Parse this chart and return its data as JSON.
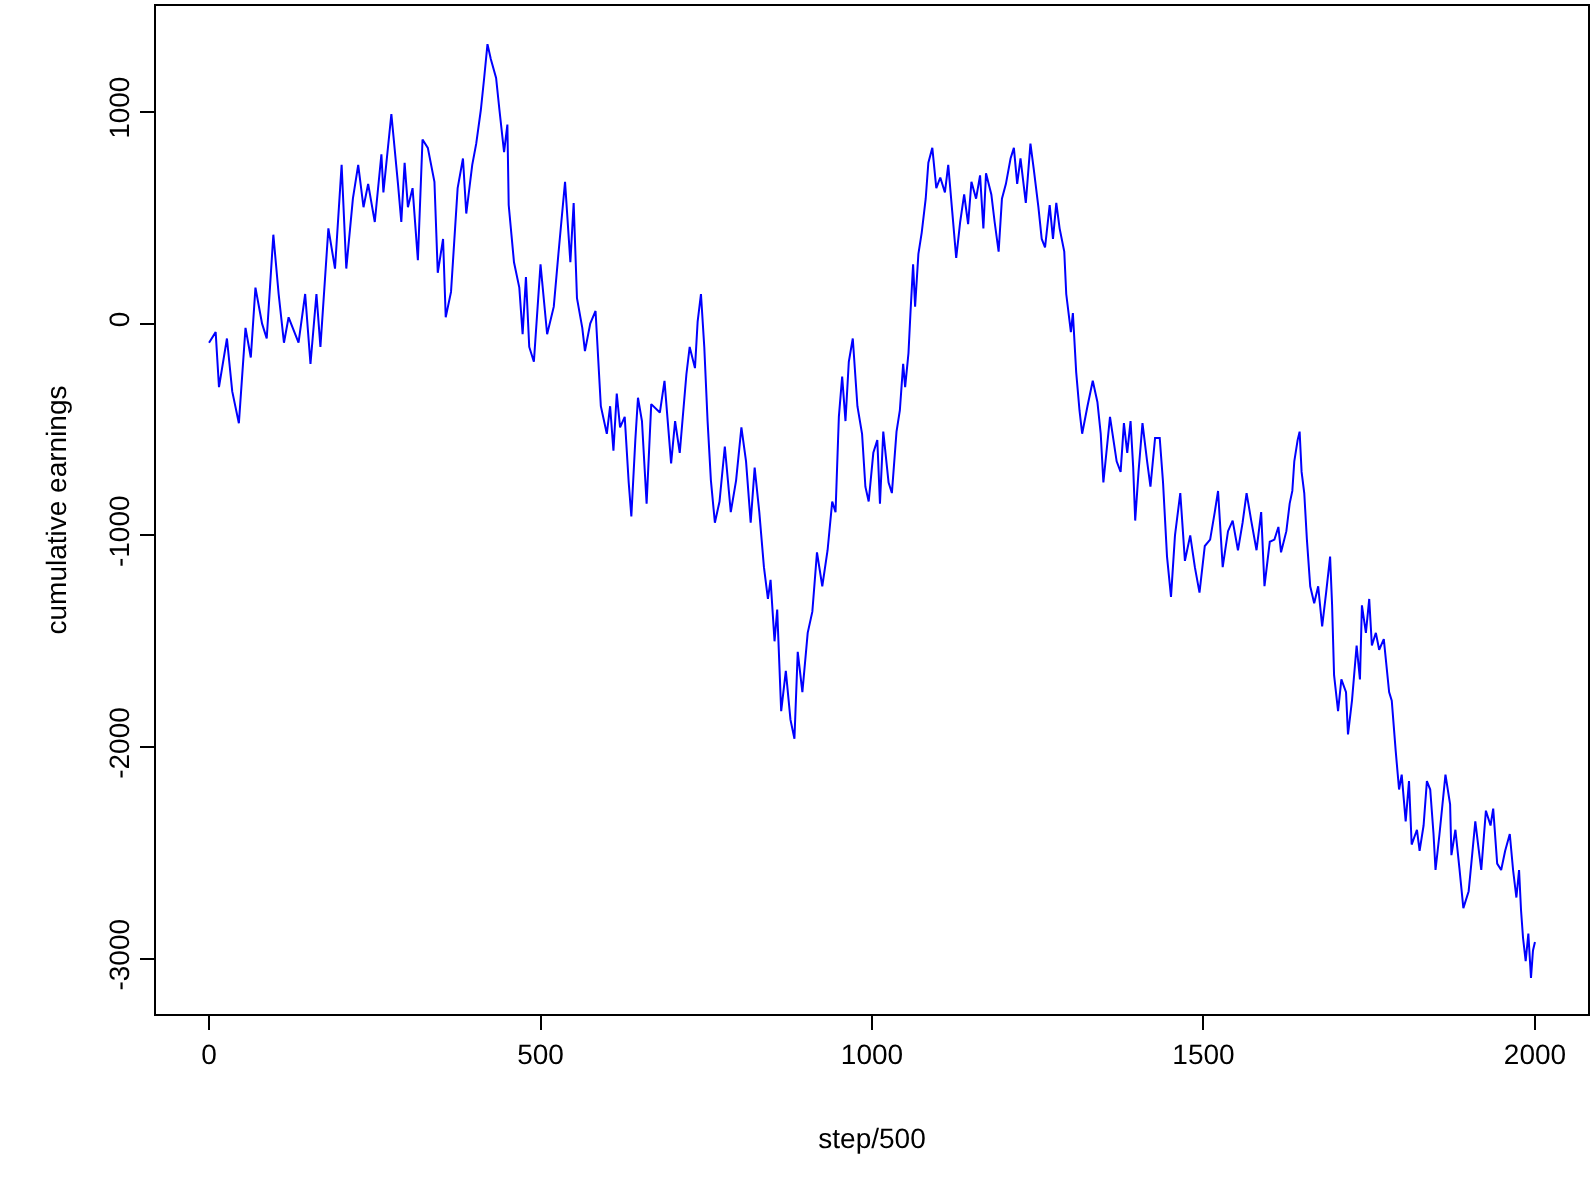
{
  "chart_data": {
    "type": "line",
    "xlabel": "step/500",
    "ylabel": "cumulative earnings",
    "xlim": [
      -80,
      2080
    ],
    "ylim": [
      -3260,
      1500
    ],
    "xticks": [
      0,
      500,
      1000,
      1500,
      2000
    ],
    "yticks": [
      -3000,
      -2000,
      -1000,
      0,
      1000
    ],
    "grid": false,
    "marker": "none",
    "line_style": "solid",
    "x": [
      0,
      10,
      15,
      27,
      35,
      45,
      55,
      63,
      70,
      80,
      87,
      97,
      105,
      113,
      120,
      135,
      145,
      153,
      162,
      168,
      180,
      190,
      200,
      207,
      217,
      225,
      233,
      240,
      250,
      260,
      263,
      275,
      285,
      290,
      295,
      300,
      307,
      315,
      322,
      330,
      340,
      345,
      353,
      357,
      365,
      375,
      383,
      388,
      397,
      403,
      410,
      415,
      420,
      425,
      433,
      438,
      445,
      450,
      452,
      460,
      468,
      473,
      478,
      483,
      490,
      500,
      510,
      520,
      527,
      537,
      545,
      550,
      555,
      563,
      567,
      575,
      583,
      591,
      600,
      605,
      610,
      615,
      620,
      627,
      633,
      637,
      643,
      647,
      653,
      660,
      667,
      680,
      687,
      697,
      703,
      710,
      720,
      725,
      733,
      737,
      742,
      747,
      752,
      757,
      763,
      770,
      778,
      787,
      795,
      803,
      810,
      817,
      823,
      830,
      837,
      843,
      847,
      853,
      857,
      863,
      870,
      877,
      883,
      888,
      895,
      903,
      910,
      917,
      925,
      933,
      940,
      945,
      950,
      955,
      960,
      965,
      971,
      978,
      985,
      990,
      995,
      1002,
      1008,
      1012,
      1017,
      1025,
      1030,
      1037,
      1042,
      1047,
      1050,
      1055,
      1058,
      1062,
      1065,
      1070,
      1075,
      1081,
      1085,
      1091,
      1097,
      1103,
      1110,
      1115,
      1121,
      1127,
      1133,
      1139,
      1145,
      1150,
      1157,
      1163,
      1168,
      1172,
      1180,
      1185,
      1191,
      1196,
      1202,
      1209,
      1214,
      1219,
      1224,
      1232,
      1239,
      1244,
      1251,
      1256,
      1261,
      1268,
      1273,
      1278,
      1283,
      1290,
      1293,
      1300,
      1303,
      1308,
      1313,
      1317,
      1325,
      1333,
      1340,
      1345,
      1349,
      1359,
      1369,
      1375,
      1380,
      1385,
      1390,
      1394,
      1397,
      1402,
      1408,
      1415,
      1420,
      1427,
      1434,
      1439,
      1445,
      1451,
      1457,
      1465,
      1472,
      1480,
      1487,
      1494,
      1502,
      1510,
      1517,
      1522,
      1529,
      1537,
      1544,
      1552,
      1559,
      1565,
      1572,
      1580,
      1587,
      1592,
      1600,
      1607,
      1613,
      1617,
      1625,
      1630,
      1634,
      1637,
      1642,
      1645,
      1648,
      1652,
      1656,
      1661,
      1667,
      1673,
      1679,
      1685,
      1691,
      1694,
      1697,
      1703,
      1708,
      1715,
      1718,
      1724,
      1731,
      1736,
      1739,
      1745,
      1750,
      1754,
      1760,
      1765,
      1772,
      1780,
      1784,
      1790,
      1795,
      1799,
      1805,
      1810,
      1814,
      1822,
      1826,
      1832,
      1837,
      1842,
      1847,
      1850,
      1856,
      1865,
      1872,
      1874,
      1880,
      1886,
      1892,
      1900,
      1904,
      1910,
      1915,
      1919,
      1926,
      1933,
      1937,
      1943,
      1949,
      1955,
      1962,
      1967,
      1972,
      1976,
      1979,
      1982,
      1986,
      1990,
      1994,
      1997,
      2000
    ],
    "series": [
      {
        "color": "#0000ff",
        "values": [
          -90,
          -40,
          -300,
          -70,
          -320,
          -470,
          -20,
          -160,
          170,
          0,
          -70,
          420,
          140,
          -90,
          30,
          -90,
          140,
          -190,
          140,
          -110,
          450,
          260,
          750,
          260,
          590,
          750,
          550,
          660,
          480,
          800,
          620,
          990,
          660,
          480,
          760,
          550,
          640,
          300,
          870,
          830,
          670,
          240,
          400,
          30,
          150,
          640,
          780,
          520,
          750,
          850,
          1010,
          1160,
          1320,
          1250,
          1160,
          1010,
          810,
          940,
          560,
          290,
          170,
          -50,
          220,
          -110,
          -180,
          280,
          -50,
          80,
          330,
          670,
          290,
          570,
          120,
          -20,
          -130,
          0,
          60,
          -390,
          -520,
          -390,
          -600,
          -330,
          -490,
          -440,
          -750,
          -910,
          -550,
          -350,
          -460,
          -850,
          -380,
          -420,
          -270,
          -660,
          -460,
          -610,
          -240,
          -110,
          -210,
          10,
          140,
          -110,
          -460,
          -740,
          -940,
          -840,
          -580,
          -890,
          -740,
          -490,
          -650,
          -940,
          -680,
          -890,
          -1150,
          -1300,
          -1210,
          -1500,
          -1350,
          -1830,
          -1640,
          -1870,
          -1960,
          -1550,
          -1740,
          -1460,
          -1360,
          -1080,
          -1240,
          -1070,
          -840,
          -890,
          -440,
          -250,
          -460,
          -180,
          -70,
          -390,
          -520,
          -770,
          -840,
          -610,
          -550,
          -850,
          -510,
          -750,
          -800,
          -510,
          -410,
          -190,
          -300,
          -140,
          50,
          280,
          80,
          330,
          430,
          590,
          760,
          830,
          640,
          690,
          620,
          750,
          530,
          310,
          480,
          610,
          470,
          670,
          590,
          700,
          450,
          710,
          610,
          480,
          340,
          590,
          660,
          780,
          830,
          660,
          780,
          570,
          850,
          730,
          550,
          400,
          360,
          560,
          400,
          570,
          450,
          340,
          140,
          -40,
          50,
          -230,
          -410,
          -520,
          -390,
          -270,
          -370,
          -520,
          -750,
          -440,
          -650,
          -700,
          -470,
          -610,
          -460,
          -680,
          -930,
          -700,
          -470,
          -650,
          -770,
          -540,
          -540,
          -750,
          -1100,
          -1290,
          -1000,
          -800,
          -1120,
          -1000,
          -1150,
          -1270,
          -1050,
          -1020,
          -890,
          -790,
          -1150,
          -980,
          -930,
          -1070,
          -940,
          -800,
          -930,
          -1070,
          -890,
          -1240,
          -1030,
          -1020,
          -960,
          -1080,
          -980,
          -850,
          -790,
          -650,
          -550,
          -510,
          -700,
          -800,
          -1020,
          -1240,
          -1320,
          -1240,
          -1430,
          -1270,
          -1100,
          -1330,
          -1660,
          -1830,
          -1680,
          -1740,
          -1940,
          -1780,
          -1520,
          -1680,
          -1330,
          -1460,
          -1300,
          -1520,
          -1460,
          -1540,
          -1490,
          -1740,
          -1780,
          -2020,
          -2200,
          -2130,
          -2350,
          -2160,
          -2460,
          -2390,
          -2490,
          -2370,
          -2160,
          -2200,
          -2410,
          -2580,
          -2410,
          -2130,
          -2270,
          -2510,
          -2390,
          -2570,
          -2760,
          -2680,
          -2550,
          -2350,
          -2480,
          -2580,
          -2300,
          -2370,
          -2290,
          -2550,
          -2580,
          -2490,
          -2410,
          -2580,
          -2710,
          -2580,
          -2770,
          -2900,
          -3010,
          -2880,
          -3090,
          -2960,
          -2920
        ]
      }
    ]
  }
}
